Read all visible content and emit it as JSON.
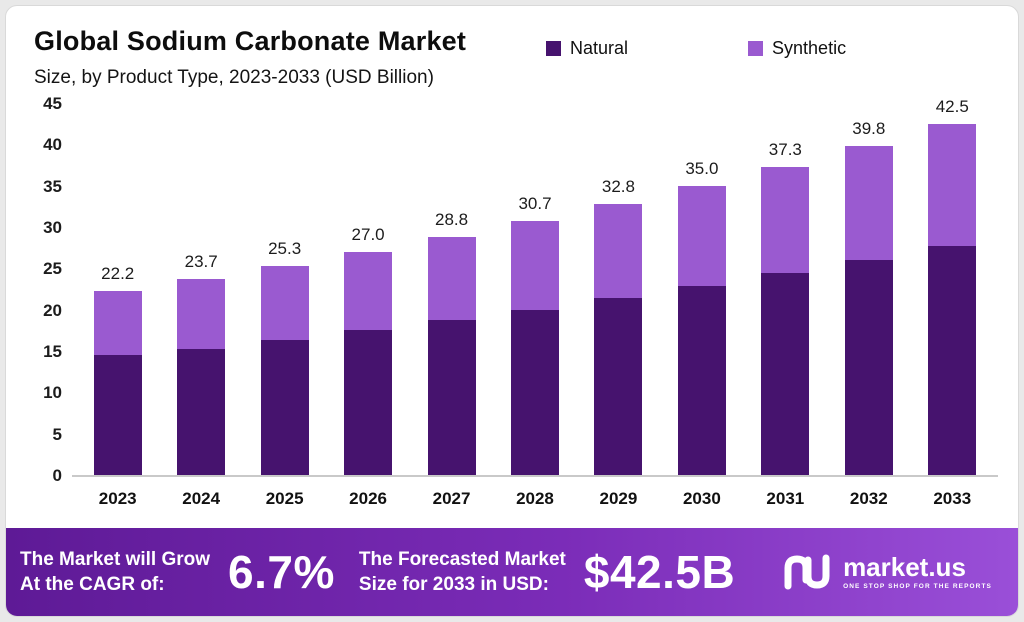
{
  "header": {
    "title": "Global Sodium Carbonate Market",
    "subtitle": "Size, by Product Type, 2023-2033 (USD Billion)"
  },
  "legend": [
    {
      "label": "Natural",
      "color": "#46136e"
    },
    {
      "label": "Synthetic",
      "color": "#9a5ad0"
    }
  ],
  "chart_data": {
    "type": "bar",
    "stacked": true,
    "title": "Global Sodium Carbonate Market Size, by Product Type, 2023-2033 (USD Billion)",
    "categories": [
      "2023",
      "2024",
      "2025",
      "2026",
      "2027",
      "2028",
      "2029",
      "2030",
      "2031",
      "2032",
      "2033"
    ],
    "series": [
      {
        "name": "Natural",
        "color": "#46136e",
        "values": [
          14.5,
          15.3,
          16.3,
          17.5,
          18.7,
          20.0,
          21.4,
          22.9,
          24.4,
          26.0,
          27.7
        ]
      },
      {
        "name": "Synthetic",
        "color": "#9a5ad0",
        "values": [
          7.7,
          8.4,
          9.0,
          9.5,
          10.1,
          10.7,
          11.4,
          12.1,
          12.9,
          13.8,
          14.8
        ]
      }
    ],
    "totals": [
      "22.2",
      "23.7",
      "25.3",
      "27.0",
      "28.8",
      "30.7",
      "32.8",
      "35.0",
      "37.3",
      "39.8",
      "42.5"
    ],
    "xlabel": "",
    "ylabel": "",
    "ylim": [
      0,
      45
    ],
    "yticks": [
      0,
      5,
      10,
      15,
      20,
      25,
      30,
      35,
      40,
      45
    ],
    "grid": false,
    "legend_position": "top"
  },
  "footer": {
    "cagr_label": "The Market will Grow\nAt the CAGR of:",
    "cagr_value": "6.7%",
    "forecast_label": "The Forecasted Market\nSize for 2033 in USD:",
    "forecast_value": "$42.5B",
    "brand_name": "market.us",
    "brand_tagline": "ONE STOP SHOP FOR THE REPORTS"
  }
}
